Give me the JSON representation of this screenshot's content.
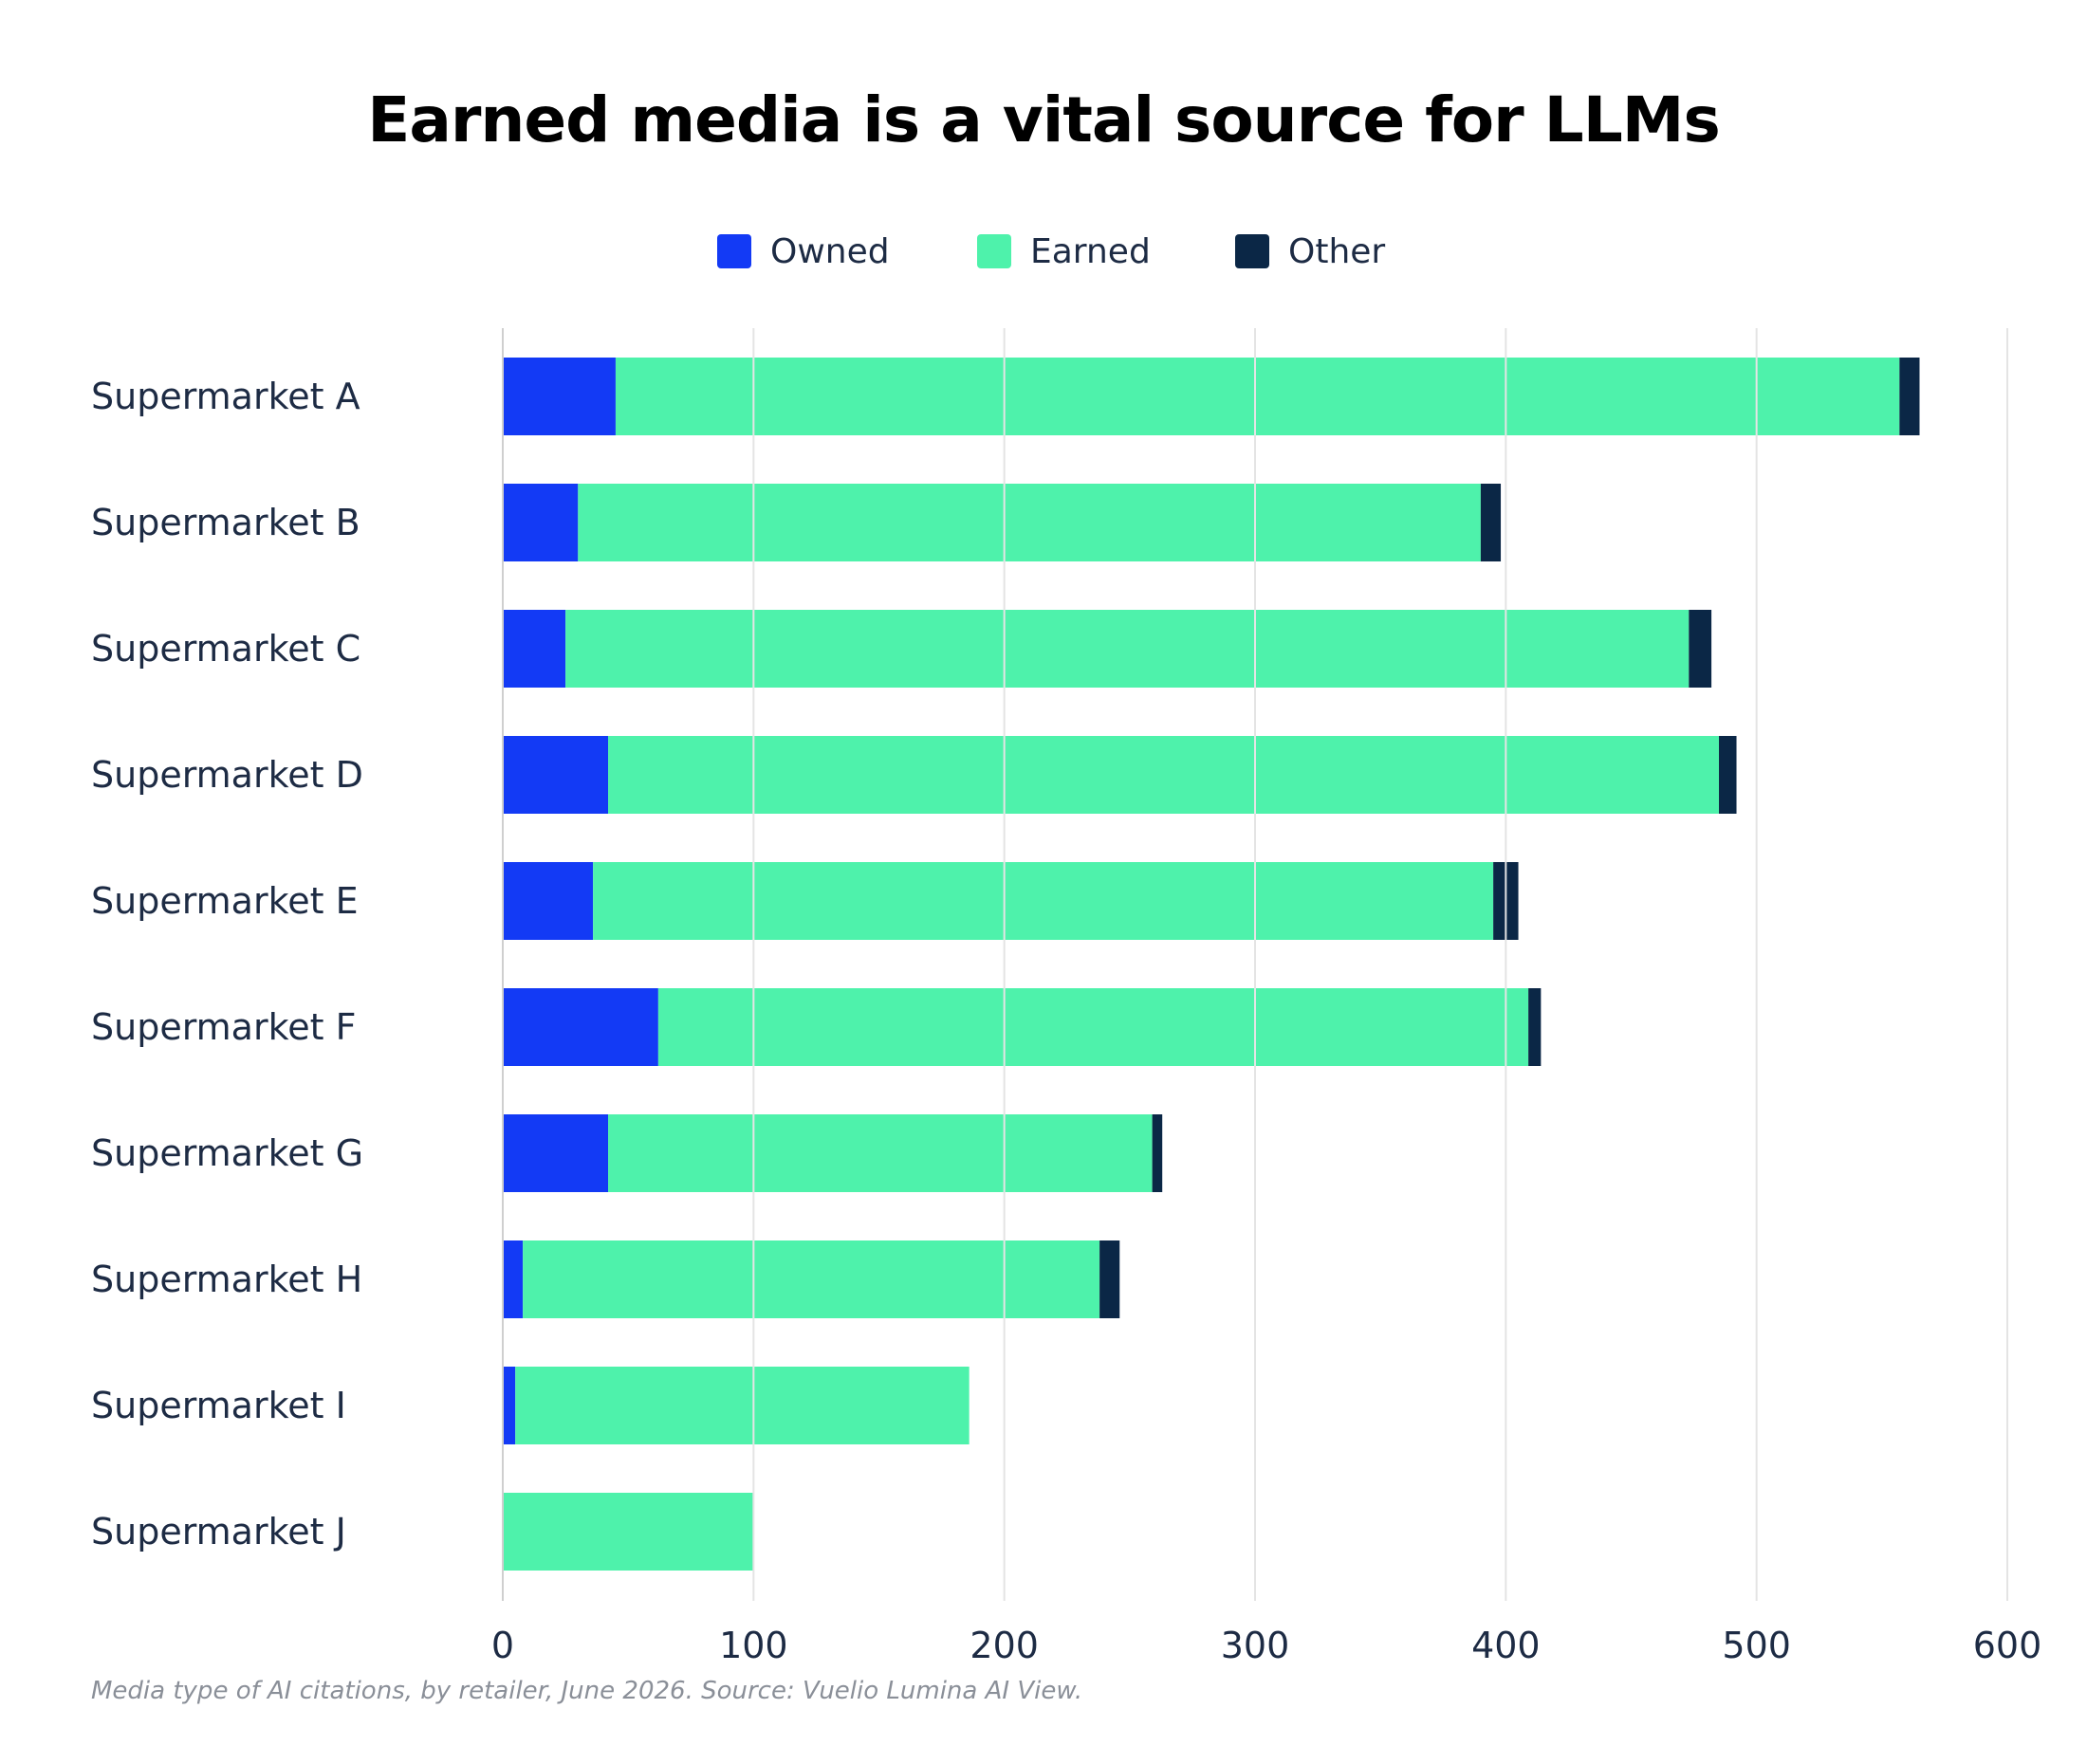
{
  "title": "Earned media is a vital source for LLMs",
  "footnote": "Media type of AI citations, by retailer, June 2026. Source: Vuelio Lumina AI View.",
  "legend": [
    {
      "label": "Owned",
      "color": "#133af5"
    },
    {
      "label": "Earned",
      "color": "#4ef2ab"
    },
    {
      "label": "Other",
      "color": "#0b2746"
    }
  ],
  "chart_data": {
    "type": "bar",
    "orientation": "horizontal",
    "stacked": true,
    "categories": [
      "Supermarket A",
      "Supermarket B",
      "Supermarket C",
      "Supermarket D",
      "Supermarket E",
      "Supermarket F",
      "Supermarket G",
      "Supermarket H",
      "Supermarket I",
      "Supermarket J"
    ],
    "series": [
      {
        "name": "Owned",
        "color": "#133af5",
        "values": [
          45,
          30,
          25,
          42,
          36,
          62,
          42,
          8,
          5,
          0
        ]
      },
      {
        "name": "Earned",
        "color": "#4ef2ab",
        "values": [
          512,
          360,
          448,
          443,
          359,
          347,
          217,
          230,
          181,
          100
        ]
      },
      {
        "name": "Other",
        "color": "#0b2746",
        "values": [
          8,
          8,
          9,
          7,
          10,
          5,
          4,
          8,
          0,
          0
        ]
      }
    ],
    "xlim": [
      0,
      600
    ],
    "xticks": [
      0,
      100,
      200,
      300,
      400,
      500,
      600
    ],
    "grid": true,
    "legend_position": "top-center"
  }
}
